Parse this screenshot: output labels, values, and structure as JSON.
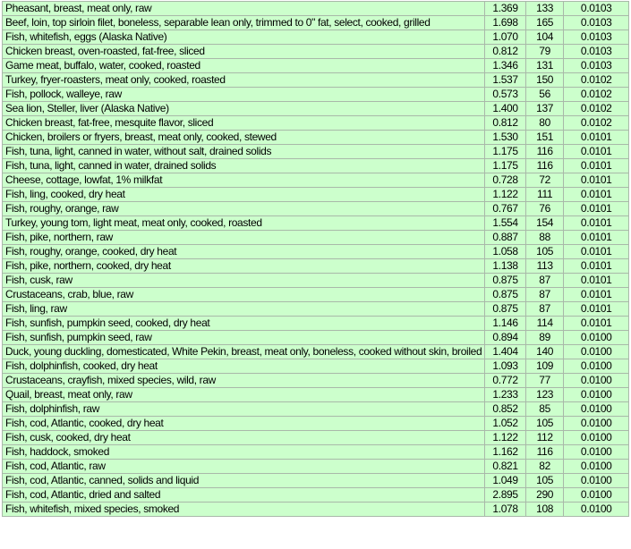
{
  "rows": [
    {
      "name": "Pheasant, breast, meat only, raw",
      "v1": "1.369",
      "v2": "133",
      "v3": "0.0103"
    },
    {
      "name": "Beef, loin, top sirloin filet, boneless, separable lean only, trimmed to 0\" fat, select, cooked, grilled",
      "v1": "1.698",
      "v2": "165",
      "v3": "0.0103"
    },
    {
      "name": "Fish, whitefish, eggs (Alaska Native)",
      "v1": "1.070",
      "v2": "104",
      "v3": "0.0103"
    },
    {
      "name": "Chicken breast, oven-roasted, fat-free, sliced",
      "v1": "0.812",
      "v2": "79",
      "v3": "0.0103"
    },
    {
      "name": "Game meat, buffalo, water, cooked, roasted",
      "v1": "1.346",
      "v2": "131",
      "v3": "0.0103"
    },
    {
      "name": "Turkey, fryer-roasters, meat only, cooked, roasted",
      "v1": "1.537",
      "v2": "150",
      "v3": "0.0102"
    },
    {
      "name": "Fish, pollock, walleye, raw",
      "v1": "0.573",
      "v2": "56",
      "v3": "0.0102"
    },
    {
      "name": "Sea lion, Steller, liver (Alaska Native)",
      "v1": "1.400",
      "v2": "137",
      "v3": "0.0102"
    },
    {
      "name": "Chicken breast, fat-free, mesquite flavor, sliced",
      "v1": "0.812",
      "v2": "80",
      "v3": "0.0102"
    },
    {
      "name": "Chicken, broilers or fryers, breast, meat only, cooked, stewed",
      "v1": "1.530",
      "v2": "151",
      "v3": "0.0101"
    },
    {
      "name": "Fish, tuna, light, canned in water, without salt, drained solids",
      "v1": "1.175",
      "v2": "116",
      "v3": "0.0101"
    },
    {
      "name": "Fish, tuna, light, canned in water, drained solids",
      "v1": "1.175",
      "v2": "116",
      "v3": "0.0101"
    },
    {
      "name": "Cheese, cottage, lowfat, 1% milkfat",
      "v1": "0.728",
      "v2": "72",
      "v3": "0.0101"
    },
    {
      "name": "Fish, ling, cooked, dry heat",
      "v1": "1.122",
      "v2": "111",
      "v3": "0.0101"
    },
    {
      "name": "Fish, roughy, orange, raw",
      "v1": "0.767",
      "v2": "76",
      "v3": "0.0101"
    },
    {
      "name": "Turkey, young tom, light meat, meat only, cooked, roasted",
      "v1": "1.554",
      "v2": "154",
      "v3": "0.0101"
    },
    {
      "name": "Fish, pike, northern, raw",
      "v1": "0.887",
      "v2": "88",
      "v3": "0.0101"
    },
    {
      "name": "Fish, roughy, orange, cooked, dry heat",
      "v1": "1.058",
      "v2": "105",
      "v3": "0.0101"
    },
    {
      "name": "Fish, pike, northern, cooked, dry heat",
      "v1": "1.138",
      "v2": "113",
      "v3": "0.0101"
    },
    {
      "name": "Fish, cusk, raw",
      "v1": "0.875",
      "v2": "87",
      "v3": "0.0101"
    },
    {
      "name": "Crustaceans, crab, blue, raw",
      "v1": "0.875",
      "v2": "87",
      "v3": "0.0101"
    },
    {
      "name": "Fish, ling, raw",
      "v1": "0.875",
      "v2": "87",
      "v3": "0.0101"
    },
    {
      "name": "Fish, sunfish, pumpkin seed, cooked, dry heat",
      "v1": "1.146",
      "v2": "114",
      "v3": "0.0101"
    },
    {
      "name": "Fish, sunfish, pumpkin seed, raw",
      "v1": "0.894",
      "v2": "89",
      "v3": "0.0100"
    },
    {
      "name": "Duck, young duckling, domesticated, White Pekin, breast, meat only, boneless, cooked without skin, broiled",
      "v1": "1.404",
      "v2": "140",
      "v3": "0.0100"
    },
    {
      "name": "Fish, dolphinfish, cooked, dry heat",
      "v1": "1.093",
      "v2": "109",
      "v3": "0.0100"
    },
    {
      "name": "Crustaceans, crayfish, mixed species, wild, raw",
      "v1": "0.772",
      "v2": "77",
      "v3": "0.0100"
    },
    {
      "name": "Quail, breast, meat only, raw",
      "v1": "1.233",
      "v2": "123",
      "v3": "0.0100"
    },
    {
      "name": "Fish, dolphinfish, raw",
      "v1": "0.852",
      "v2": "85",
      "v3": "0.0100"
    },
    {
      "name": "Fish, cod, Atlantic, cooked, dry heat",
      "v1": "1.052",
      "v2": "105",
      "v3": "0.0100"
    },
    {
      "name": "Fish, cusk, cooked, dry heat",
      "v1": "1.122",
      "v2": "112",
      "v3": "0.0100"
    },
    {
      "name": "Fish, haddock, smoked",
      "v1": "1.162",
      "v2": "116",
      "v3": "0.0100"
    },
    {
      "name": "Fish, cod, Atlantic, raw",
      "v1": "0.821",
      "v2": "82",
      "v3": "0.0100"
    },
    {
      "name": "Fish, cod, Atlantic, canned, solids and liquid",
      "v1": "1.049",
      "v2": "105",
      "v3": "0.0100"
    },
    {
      "name": "Fish, cod, Atlantic, dried and salted",
      "v1": "2.895",
      "v2": "290",
      "v3": "0.0100"
    },
    {
      "name": "Fish, whitefish, mixed species, smoked",
      "v1": "1.078",
      "v2": "108",
      "v3": "0.0100"
    }
  ],
  "colors": {
    "cell_background": "#ccffcc",
    "border": "#a9b8a9"
  }
}
